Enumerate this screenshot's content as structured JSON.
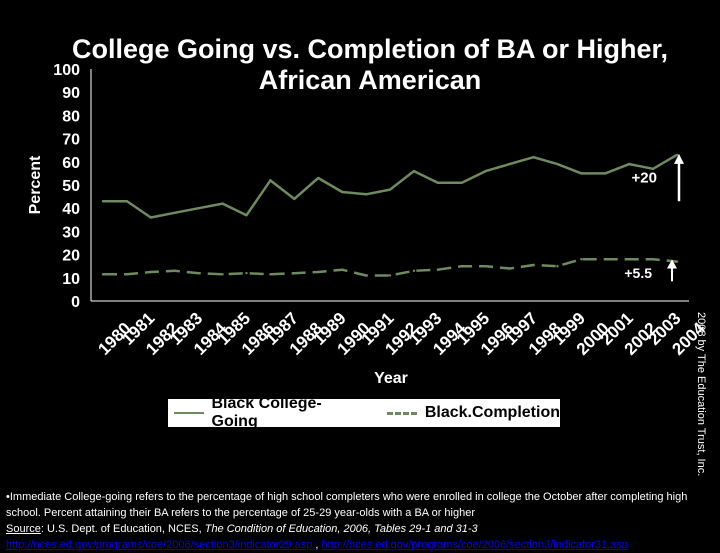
{
  "chart_data": {
    "type": "line",
    "title_line1": "College Going vs. Completion of BA or Higher,",
    "title_line2": "African American",
    "xlabel": "Year",
    "ylabel": "Percent",
    "ylim": [
      0,
      100
    ],
    "yticks": [
      0,
      10,
      20,
      30,
      40,
      50,
      60,
      70,
      80,
      90,
      100
    ],
    "x": [
      "1980",
      "1981",
      "1982",
      "1983",
      "1984",
      "1985",
      "1986",
      "1987",
      "1988",
      "1989",
      "1990",
      "1991",
      "1992",
      "1993",
      "1994",
      "1995",
      "1996",
      "1997",
      "1998",
      "1999",
      "2000",
      "2001",
      "2002",
      "2003",
      "2004"
    ],
    "series": [
      {
        "name": "Black College-Going",
        "style": "solid",
        "color": "#6d8b5e",
        "values": [
          43,
          43,
          36,
          38,
          40,
          42,
          37,
          52,
          44,
          53,
          47,
          46,
          48,
          56,
          51,
          51,
          56,
          59,
          62,
          59,
          55,
          55,
          59,
          57,
          63
        ]
      },
      {
        "name": "Black.Completion",
        "style": "dashed",
        "color": "#6d8b5e",
        "values": [
          11.5,
          11.5,
          12.5,
          13,
          12,
          11.5,
          12,
          11.5,
          12,
          12.5,
          13.5,
          11,
          11,
          13,
          13.5,
          15,
          15,
          14,
          15.5,
          15,
          18,
          18,
          18,
          18,
          17
        ]
      }
    ],
    "annotations": [
      {
        "text": "+20"
      },
      {
        "text": "+5.5"
      }
    ],
    "legend_position": "bottom-center",
    "grid": false
  },
  "side_credit": "2008 by The Education Trust, Inc.",
  "footnote": {
    "text1": "•Immediate College-going refers to the percentage of high school completers who were enrolled in college the October after completing high school. Percent attaining their BA refers to the percentage of 25-29 year-olds with a BA or higher",
    "source_label": "Source",
    "text2": ":  U.S. Dept. of Education, NCES, ",
    "italic": "The Condition of Education, 2006, Tables 29-1 and 31-3",
    "link1": "http://nces.ed.gov/programs/coe/2006/section3/indicator29.asp",
    "sep": " , ",
    "link2": "http://nces.ed.gov/programs/coe/2006/section3/indicator31.asp"
  }
}
